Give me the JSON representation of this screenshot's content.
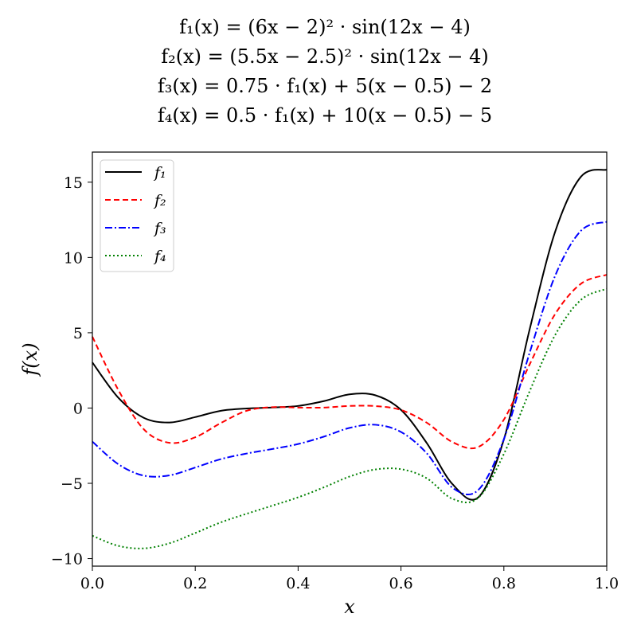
{
  "title_lines": [
    "f₁(x) =    (6x − 2)² · sin(12x − 4)",
    "f₂(x) = (5.5x − 2.5)² · sin(12x − 4)",
    "f₃(x) = 0.75 · f₁(x) + 5(x − 0.5) − 2",
    "f₄(x) = 0.5 · f₁(x) + 10(x − 0.5) − 5"
  ],
  "chart_data": {
    "type": "line",
    "title": "f1(x) = (6x-2)^2 * sin(12x-4); f2(x) = (5.5x-2.5)^2 * sin(12x-4); f3(x) = 0.75*f1(x) + 5(x-0.5) - 2; f4(x) = 0.5*f1(x) + 10(x-0.5) - 5",
    "xlabel": "x",
    "ylabel": "f(x)",
    "xlim": [
      0,
      1
    ],
    "ylim": [
      -10.5,
      17
    ],
    "xticks": [
      "0.0",
      "0.2",
      "0.4",
      "0.6",
      "0.8",
      "1.0"
    ],
    "yticks": [
      "−10",
      "−5",
      "0",
      "5",
      "10",
      "15"
    ],
    "grid": false,
    "legend_position": "upper-left",
    "x": [
      0,
      0.05,
      0.1,
      0.15,
      0.2,
      0.25,
      0.3,
      0.35,
      0.4,
      0.45,
      0.5,
      0.55,
      0.6,
      0.65,
      0.7,
      0.75,
      0.8,
      0.85,
      0.9,
      0.95,
      1.0
    ],
    "series": [
      {
        "name": "f₁",
        "color": "#000000",
        "dash": "solid",
        "values": [
          3.03,
          0.7,
          -0.65,
          -0.96,
          -0.6,
          -0.18,
          -0.03,
          0.04,
          0.14,
          0.46,
          0.91,
          0.85,
          -0.12,
          -2.32,
          -5.05,
          -5.94,
          -2.09,
          5.21,
          11.74,
          15.37,
          15.83
        ]
      },
      {
        "name": "f₂",
        "color": "#ff0000",
        "dash": "dashed",
        "values": [
          4.74,
          1.23,
          -1.41,
          -2.31,
          -1.94,
          -0.99,
          -0.18,
          0.06,
          0.03,
          0.03,
          0.14,
          0.13,
          -0.13,
          -0.97,
          -2.26,
          -2.59,
          -0.77,
          2.89,
          6.26,
          8.26,
          8.85
        ]
      },
      {
        "name": "f₃",
        "color": "#0000ff",
        "dash": "dashdot",
        "values": [
          -2.23,
          -3.72,
          -4.49,
          -4.47,
          -3.95,
          -3.39,
          -3.02,
          -2.72,
          -2.39,
          -1.9,
          -1.32,
          -1.11,
          -1.59,
          -3.0,
          -5.29,
          -5.45,
          -2.07,
          3.66,
          8.81,
          11.78,
          12.37
        ]
      },
      {
        "name": "f₄",
        "color": "#008000",
        "dash": "dotted",
        "values": [
          -8.48,
          -9.15,
          -9.32,
          -8.98,
          -8.3,
          -7.59,
          -7.02,
          -6.48,
          -5.93,
          -5.27,
          -4.55,
          -4.08,
          -4.06,
          -4.66,
          -6.03,
          -5.97,
          -3.05,
          1.11,
          4.87,
          7.19,
          7.92
        ]
      }
    ]
  }
}
